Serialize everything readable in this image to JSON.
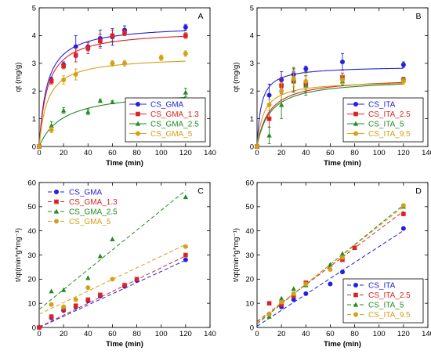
{
  "chart_data": [
    {
      "panel": "A",
      "type": "scatter",
      "xlabel": "Time (min)",
      "ylabel": "qt (mg/g)",
      "xlim": [
        0,
        140
      ],
      "ylim": [
        0,
        5
      ],
      "xticks": [
        "0",
        "20",
        "40",
        "60",
        "80",
        "100",
        "120",
        "140"
      ],
      "yticks": [
        "0",
        "1",
        "2",
        "3",
        "4",
        "5"
      ],
      "grid": false,
      "legend_position": "bottom-right",
      "fit_lines": "solid",
      "series": [
        {
          "name": "CS_GMA",
          "color": "#2222dd",
          "marker": "circle",
          "x": [
            0,
            10,
            20,
            30,
            40,
            50,
            60,
            70,
            120
          ],
          "y": [
            0,
            2.4,
            2.95,
            3.6,
            3.6,
            3.9,
            3.95,
            4.2,
            4.3
          ],
          "err": [
            0,
            0.1,
            0.1,
            0.4,
            0.15,
            0.3,
            0.3,
            0.15,
            0.1
          ],
          "fit": {
            "qe": 4.4,
            "k": 0.035
          }
        },
        {
          "name": "CS_GMA_1.3",
          "color": "#dd2222",
          "marker": "square",
          "x": [
            0,
            10,
            20,
            30,
            40,
            50,
            60,
            70,
            120
          ],
          "y": [
            0,
            2.35,
            2.9,
            3.3,
            3.55,
            3.8,
            4.0,
            4.1,
            4.0
          ],
          "err": [
            0,
            0.1,
            0.1,
            0.25,
            0.2,
            0.25,
            0.2,
            0.1,
            0.1
          ],
          "fit": {
            "qe": 4.2,
            "k": 0.035
          }
        },
        {
          "name": "CS_GMA_2.5",
          "color": "#228b22",
          "marker": "triangle",
          "x": [
            0,
            10,
            20,
            40,
            50,
            60,
            120
          ],
          "y": [
            0,
            0.75,
            1.3,
            1.25,
            1.65,
            1.6,
            1.95
          ],
          "err": [
            0,
            0.15,
            0.1,
            0.1,
            0.05,
            0.05,
            0.15
          ],
          "fit": {
            "qe": 2.05,
            "k": 0.025
          }
        },
        {
          "name": "CS_GMA_5",
          "color": "#d4a017",
          "marker": "circle",
          "x": [
            0,
            10,
            20,
            30,
            60,
            70,
            100,
            120
          ],
          "y": [
            0,
            0.6,
            2.4,
            2.6,
            3.0,
            3.0,
            3.2,
            3.35
          ],
          "err": [
            0,
            0.1,
            0.15,
            0.2,
            0.1,
            0.1,
            0.1,
            0.1
          ],
          "fit": {
            "qe": 3.25,
            "k": 0.045
          }
        }
      ]
    },
    {
      "panel": "B",
      "type": "scatter",
      "xlabel": "Time (min)",
      "ylabel": "qt (mg/g)",
      "xlim": [
        0,
        140
      ],
      "ylim": [
        0,
        5
      ],
      "xticks": [
        "0",
        "20",
        "40",
        "60",
        "80",
        "100",
        "120",
        "140"
      ],
      "yticks": [
        "0",
        "1",
        "2",
        "3",
        "4",
        "5"
      ],
      "grid": false,
      "legend_position": "bottom-right",
      "fit_lines": "solid",
      "series": [
        {
          "name": "CS_ITA",
          "color": "#2222dd",
          "marker": "circle",
          "x": [
            0,
            10,
            20,
            30,
            40,
            70,
            120
          ],
          "y": [
            0,
            1.85,
            2.4,
            2.6,
            2.8,
            3.05,
            2.95
          ],
          "err": [
            0,
            0.4,
            0.3,
            0.2,
            0.1,
            0.3,
            0.1
          ],
          "fit": {
            "qe": 2.9,
            "k": 0.1
          }
        },
        {
          "name": "CS_ITA_2.5",
          "color": "#dd2222",
          "marker": "square",
          "x": [
            0,
            10,
            20,
            30,
            40,
            70,
            120
          ],
          "y": [
            0,
            1.0,
            2.2,
            2.35,
            2.25,
            2.5,
            2.4
          ],
          "err": [
            0,
            0.3,
            0.3,
            0.35,
            0.3,
            0.15,
            0.1
          ],
          "fit": {
            "qe": 2.5,
            "k": 0.04
          }
        },
        {
          "name": "CS_ITA_5",
          "color": "#228b22",
          "marker": "triangle",
          "x": [
            0,
            10,
            20,
            30,
            40,
            70,
            120
          ],
          "y": [
            0,
            0.4,
            1.5,
            2.4,
            2.2,
            2.35,
            2.4
          ],
          "err": [
            0,
            0.3,
            0.5,
            0.45,
            0.35,
            0.15,
            0.1
          ],
          "fit": {
            "qe": 2.45,
            "k": 0.038
          }
        },
        {
          "name": "CS_ITA_9.5",
          "color": "#d4a017",
          "marker": "circle",
          "x": [
            0,
            10,
            20,
            30,
            40,
            70,
            120
          ],
          "y": [
            0,
            1.5,
            2.0,
            2.45,
            2.35,
            2.4,
            2.35
          ],
          "err": [
            0,
            0.2,
            0.3,
            0.3,
            0.3,
            0.15,
            0.1
          ],
          "fit": {
            "qe": 2.38,
            "k": 0.075
          }
        }
      ]
    },
    {
      "panel": "C",
      "type": "scatter",
      "xlabel": "Time (min)",
      "ylabel": "t/qt(min*g*mg⁻¹)",
      "xlim": [
        0,
        140
      ],
      "ylim": [
        0,
        60
      ],
      "xticks": [
        "0",
        "20",
        "40",
        "60",
        "80",
        "100",
        "120",
        "140"
      ],
      "yticks": [
        "0",
        "10",
        "20",
        "30",
        "40",
        "50",
        "60"
      ],
      "grid": false,
      "legend_position": "top-left",
      "fit_lines": "dashed",
      "series": [
        {
          "name": "CS_GMA",
          "color": "#2222dd",
          "marker": "circle",
          "x": [
            0,
            10,
            20,
            30,
            40,
            50,
            70,
            80,
            120
          ],
          "y": [
            0,
            4,
            7,
            8.5,
            11,
            13,
            17,
            19.5,
            28
          ],
          "fit": {
            "a": 0.0,
            "b": 0.232
          }
        },
        {
          "name": "CS_GMA_1.3",
          "color": "#dd2222",
          "marker": "square",
          "x": [
            0,
            10,
            20,
            30,
            40,
            50,
            70,
            80,
            120
          ],
          "y": [
            0,
            4.5,
            7.5,
            9,
            11.5,
            13.5,
            17.5,
            20,
            30
          ],
          "fit": {
            "a": 0.2,
            "b": 0.245
          }
        },
        {
          "name": "CS_GMA_2.5",
          "color": "#228b22",
          "marker": "triangle",
          "x": [
            10,
            20,
            40,
            50,
            60,
            120
          ],
          "y": [
            15,
            15.5,
            20.5,
            29.5,
            36.5,
            54
          ],
          "fit": {
            "a": 7.5,
            "b": 0.41
          }
        },
        {
          "name": "CS_GMA_5",
          "color": "#d4a017",
          "marker": "circle",
          "x": [
            10,
            20,
            30,
            40,
            60,
            120
          ],
          "y": [
            9.5,
            8.5,
            11.5,
            16.5,
            20,
            33.5
          ],
          "fit": {
            "a": 5.5,
            "b": 0.24
          }
        }
      ]
    },
    {
      "panel": "D",
      "type": "scatter",
      "xlabel": "Time (min)",
      "ylabel": "t/qt(min*g*mg⁻¹)",
      "xlim": [
        0,
        140
      ],
      "ylim": [
        0,
        60
      ],
      "xticks": [
        "0",
        "20",
        "40",
        "60",
        "80",
        "100",
        "120",
        "140"
      ],
      "yticks": [
        "0",
        "10",
        "20",
        "30",
        "40",
        "50",
        "60"
      ],
      "grid": false,
      "legend_position": "bottom-right",
      "fit_lines": "dashed",
      "series": [
        {
          "name": "CS_ITA",
          "color": "#2222dd",
          "marker": "circle",
          "x": [
            10,
            20,
            30,
            40,
            60,
            70,
            120
          ],
          "y": [
            5.5,
            8.5,
            11.5,
            14,
            18,
            23,
            41
          ],
          "fit": {
            "a": 0.5,
            "b": 0.33
          }
        },
        {
          "name": "CS_ITA_2.5",
          "color": "#dd2222",
          "marker": "square",
          "x": [
            10,
            20,
            30,
            40,
            70,
            80,
            120
          ],
          "y": [
            10,
            9.5,
            13,
            18.5,
            28,
            33,
            47
          ],
          "fit": {
            "a": 2.5,
            "b": 0.38
          }
        },
        {
          "name": "CS_ITA_5",
          "color": "#228b22",
          "marker": "triangle",
          "x": [
            10,
            20,
            30,
            40,
            60,
            70,
            120
          ],
          "y": [
            4.5,
            12,
            16,
            17.5,
            26,
            30.5,
            50
          ],
          "fit": {
            "a": 1.5,
            "b": 0.41
          }
        },
        {
          "name": "CS_ITA_9.5",
          "color": "#d4a017",
          "marker": "circle",
          "x": [
            10,
            20,
            30,
            40,
            60,
            70,
            120
          ],
          "y": [
            5.5,
            10.5,
            14,
            18,
            24,
            29,
            50.5
          ],
          "fit": {
            "a": 2.0,
            "b": 0.4
          }
        }
      ]
    }
  ]
}
